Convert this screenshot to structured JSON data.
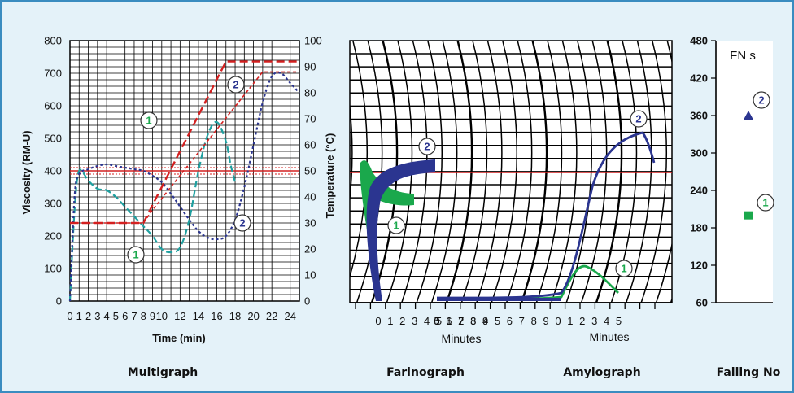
{
  "chart_data": [
    {
      "type": "line",
      "caption": "Multigraph",
      "xlabel": "Time (min)",
      "ylabel": "Viscosity (RM-U)",
      "y2label": "Temperature (°C)",
      "xlim": [
        0,
        25
      ],
      "ylim": [
        0,
        800
      ],
      "y2lim": [
        0,
        100
      ],
      "xticks": [
        "0",
        "1",
        "2",
        "3",
        "4",
        "5",
        "6",
        "7",
        "8",
        "9",
        "10",
        "12",
        "14",
        "16",
        "18",
        "20",
        "22",
        "24"
      ],
      "yticks": [
        0,
        100,
        200,
        300,
        400,
        500,
        600,
        700,
        800
      ],
      "y2ticks": [
        0,
        10,
        20,
        30,
        40,
        50,
        60,
        70,
        80,
        90,
        100
      ],
      "series": [
        {
          "label": "1",
          "kind": "viscosity",
          "color": "#1fa0a0",
          "x": [
            0,
            0.5,
            1,
            2,
            3,
            4,
            5,
            6,
            7,
            8,
            9,
            10,
            11,
            12,
            13,
            14,
            15,
            16,
            17,
            17.5,
            18
          ],
          "y": [
            0,
            280,
            400,
            370,
            345,
            340,
            320,
            290,
            260,
            230,
            200,
            160,
            150,
            165,
            250,
            400,
            510,
            550,
            490,
            420,
            365
          ]
        },
        {
          "label": "2",
          "kind": "viscosity",
          "color": "#2b3590",
          "x": [
            0,
            0.5,
            1,
            2,
            3,
            4,
            5,
            6,
            7,
            8,
            9,
            10,
            11,
            12,
            13,
            14,
            15,
            16,
            17,
            18,
            19,
            20,
            21,
            22,
            23,
            24,
            25
          ],
          "y": [
            0,
            320,
            390,
            405,
            415,
            420,
            415,
            410,
            405,
            400,
            385,
            365,
            330,
            290,
            250,
            215,
            195,
            190,
            200,
            250,
            350,
            480,
            610,
            690,
            700,
            670,
            640
          ]
        },
        {
          "label": "1",
          "kind": "temperature",
          "color": "#d42020",
          "x": [
            0,
            2,
            4,
            6,
            8,
            17,
            18,
            20,
            22,
            25
          ],
          "y": [
            30,
            30,
            30,
            30,
            30,
            92,
            92,
            92,
            92,
            92
          ]
        },
        {
          "label": "2",
          "kind": "temperature",
          "color": "#d42020",
          "x": [
            0,
            2,
            4,
            6,
            8,
            9,
            21,
            22,
            25
          ],
          "y": [
            30,
            30,
            30,
            30,
            30,
            35,
            88,
            88,
            88
          ]
        }
      ],
      "reference_line": {
        "y": 400,
        "color": "#d42020"
      },
      "labels": [
        "1",
        "2",
        "1",
        "2"
      ]
    },
    {
      "type": "line",
      "caption": "Farinograph",
      "xlabel": "Minutes",
      "xticks": [
        "0",
        "1",
        "2",
        "3",
        "4",
        "5"
      ],
      "series": [
        {
          "label": "1",
          "color": "#1aa84c"
        },
        {
          "label": "2",
          "color": "#2b3590"
        }
      ],
      "labels": [
        "1",
        "2"
      ]
    },
    {
      "type": "line",
      "caption": "Amylograph",
      "xlabel": "Minutes",
      "xticks": [
        "6",
        "7",
        "8",
        "9",
        "0",
        "1",
        "2",
        "3",
        "4",
        "5",
        "6",
        "7",
        "8",
        "9",
        "0",
        "1",
        "2",
        "3",
        "4",
        "5"
      ],
      "series": [
        {
          "label": "1",
          "color": "#1aa84c"
        },
        {
          "label": "2",
          "color": "#2b3590"
        }
      ],
      "labels": [
        "1",
        "2"
      ]
    },
    {
      "type": "scatter",
      "caption": "Falling No",
      "title": "FN s",
      "ylim": [
        60,
        480
      ],
      "yticks": [
        60,
        120,
        180,
        240,
        300,
        360,
        420,
        480
      ],
      "series": [
        {
          "label": "1",
          "marker": "square",
          "color": "#1aa84c",
          "y": 200
        },
        {
          "label": "2",
          "marker": "triangle",
          "color": "#2b3590",
          "y": 360
        }
      ],
      "labels": [
        "1",
        "2"
      ]
    }
  ]
}
